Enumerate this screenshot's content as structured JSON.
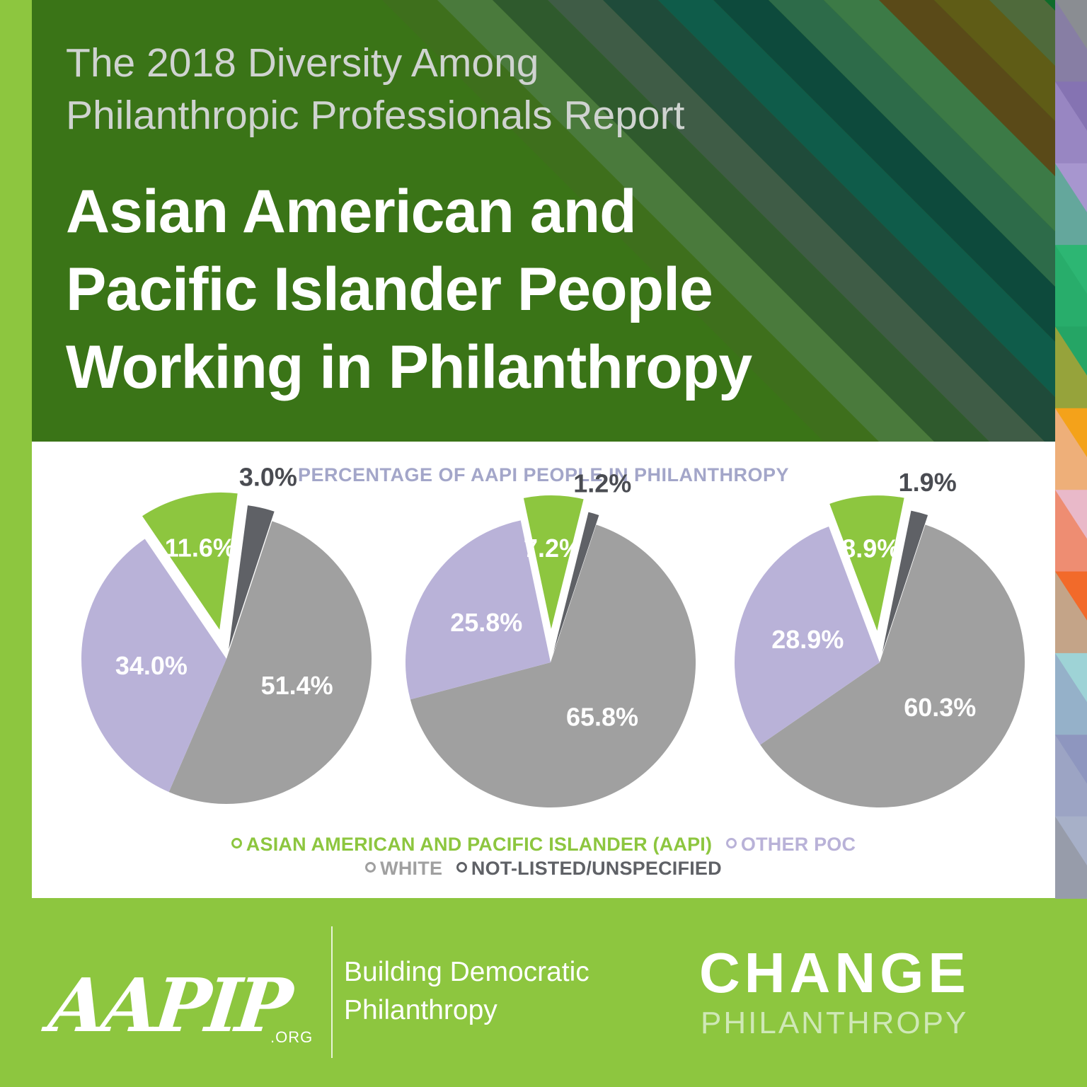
{
  "header": {
    "subtitle": "The 2018 Diversity Among\nPhilanthropic Professionals Report",
    "title": "Asian American and\nPacific Islander People\nWorking in Philanthropy"
  },
  "colors": {
    "background": "#8dc63f",
    "aapi": "#8dc63f",
    "other_poc": "#b9b2d8",
    "white": "#a0a0a0",
    "unspecified": "#5f6166",
    "heading": "#a3a6c9",
    "stripes": [
      "#3e6f1c",
      "#4a7a3c",
      "#2f5a2d",
      "#3f5c46",
      "#1f4b3a",
      "#0f5c4a",
      "#0d4a3c",
      "#2d6b49",
      "#3c7a46",
      "#5a4a18",
      "#5f5c16",
      "#4f6a3b",
      "#0f6b2b",
      "#2e5a3a",
      "#365038"
    ],
    "right_strip": [
      "#8a8d92",
      "#8573b2",
      "#a796cf",
      "#2db673",
      "#25a565",
      "#f4a21a",
      "#e9b9c9",
      "#f26a2a",
      "#9ed3d6",
      "#8e96bf",
      "#a7b0c8"
    ]
  },
  "chart_data": {
    "type": "pie",
    "title": "PERCENTAGE OF AAPI PEOPLE IN PHILANTHROPY",
    "legend": [
      {
        "key": "aapi",
        "label": "ASIAN AMERICAN AND PACIFIC ISLANDER (AAPI)",
        "color": "#8dc63f"
      },
      {
        "key": "other_poc",
        "label": "OTHER POC",
        "color": "#b9b2d8"
      },
      {
        "key": "white",
        "label": "WHITE",
        "color": "#a0a0a0"
      },
      {
        "key": "unspecified",
        "label": "NOT-LISTED/UNSPECIFIED",
        "color": "#5f6166"
      }
    ],
    "charts": [
      {
        "values": {
          "white": 51.4,
          "other_poc": 34.0,
          "aapi": 11.6,
          "unspecified": 3.0
        },
        "labels": {
          "white": "51.4%",
          "other_poc": "34.0%",
          "aapi": "11.6%",
          "unspecified": "3.0%"
        }
      },
      {
        "values": {
          "white": 65.8,
          "other_poc": 25.8,
          "aapi": 7.2,
          "unspecified": 1.2
        },
        "labels": {
          "white": "65.8%",
          "other_poc": "25.8%",
          "aapi": "7.2%",
          "unspecified": "1.2%"
        }
      },
      {
        "values": {
          "white": 60.3,
          "other_poc": 28.9,
          "aapi": 8.9,
          "unspecified": 1.9
        },
        "labels": {
          "white": "60.3%",
          "other_poc": "28.9%",
          "aapi": "8.9%",
          "unspecified": "1.9%"
        }
      }
    ]
  },
  "footer": {
    "aapip_logo": "AAPIP",
    "aapip_domain": ".ORG",
    "tagline": "Building Democratic\nPhilanthropy",
    "change_logo": "CHANGE",
    "change_sub": "PHILANTHROPY"
  }
}
